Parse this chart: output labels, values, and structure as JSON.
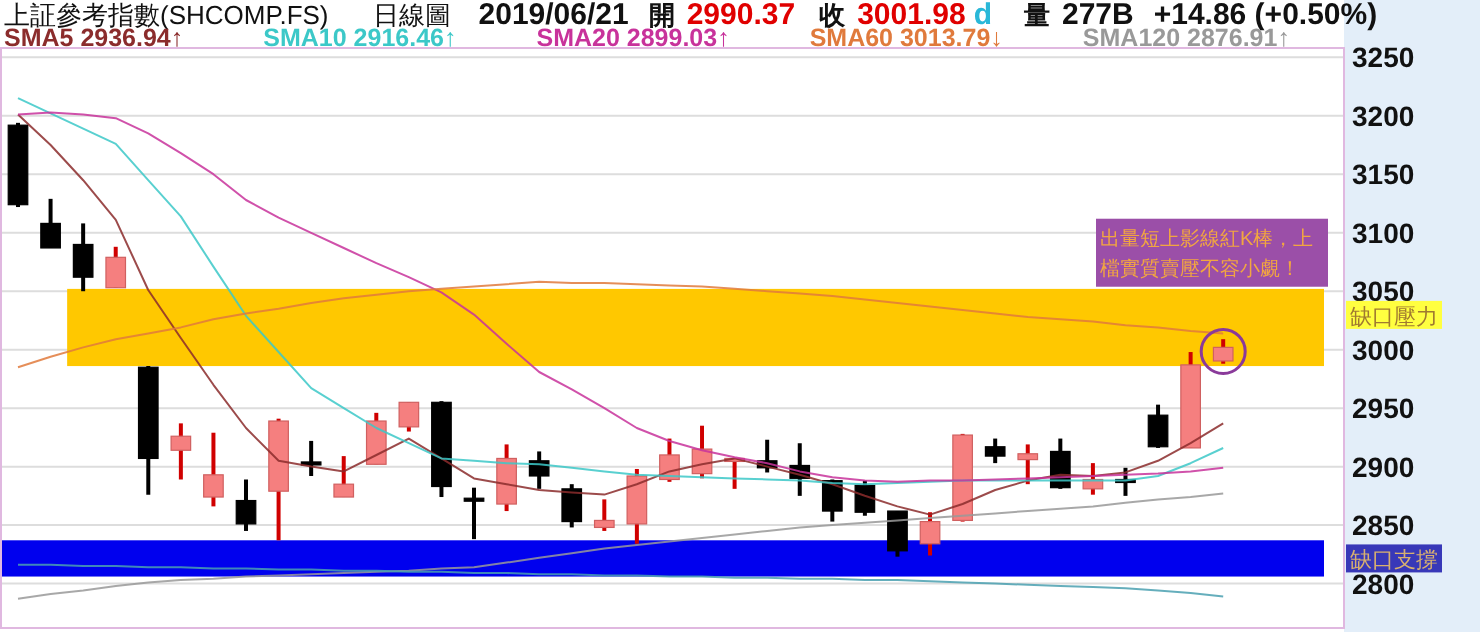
{
  "chart_data": {
    "type": "candlestick",
    "title": "上証參考指數(SHCOMP.FS)",
    "subtitle": "日線圖",
    "annotations": [
      "2019/06/21",
      "開",
      "2990.37",
      "收",
      "3001.98",
      "d",
      "量",
      "277B",
      "+14.86 (+0.50%)",
      "出量短上影線紅K棒，上檔實質賣壓不容小覷！"
    ],
    "categories": [
      null,
      null,
      null,
      null,
      null,
      null,
      null,
      null,
      null,
      null,
      null,
      null,
      null,
      null,
      null,
      null,
      null,
      null,
      null,
      null,
      null,
      null,
      null,
      null,
      null,
      null,
      null,
      null,
      null,
      null,
      null,
      null,
      null,
      null,
      null,
      null,
      null,
      null
    ],
    "ohlc": [
      [
        3192,
        3194,
        3122,
        3124
      ],
      [
        3108,
        3129,
        3087,
        3087
      ],
      [
        3090,
        3108,
        3050,
        3062
      ],
      [
        3053,
        3088,
        3053,
        3079
      ],
      [
        2985,
        2986,
        2876,
        2907
      ],
      [
        2914,
        2937,
        2889,
        2926
      ],
      [
        2874,
        2929,
        2866,
        2893
      ],
      [
        2871,
        2889,
        2845,
        2851
      ],
      [
        2879,
        2941,
        2837,
        2939
      ],
      [
        2904,
        2922,
        2892,
        2903
      ],
      [
        2874,
        2909,
        2874,
        2885
      ],
      [
        2902,
        2946,
        2902,
        2939
      ],
      [
        2934,
        2955,
        2930,
        2955
      ],
      [
        2955,
        2956,
        2874,
        2883
      ],
      [
        2873,
        2882,
        2838,
        2872
      ],
      [
        2868,
        2919,
        2862,
        2907
      ],
      [
        2905,
        2913,
        2881,
        2892
      ],
      [
        2881,
        2885,
        2848,
        2853
      ],
      [
        2848,
        2872,
        2845,
        2854
      ],
      [
        2851,
        2898,
        2834,
        2892
      ],
      [
        2889,
        2924,
        2887,
        2910
      ],
      [
        2894,
        2935,
        2890,
        2915
      ],
      [
        2905,
        2907,
        2881,
        2907
      ],
      [
        2905,
        2923,
        2895,
        2899
      ],
      [
        2901,
        2920,
        2875,
        2890
      ],
      [
        2888,
        2889,
        2853,
        2862
      ],
      [
        2884,
        2888,
        2858,
        2861
      ],
      [
        2862,
        2862,
        2823,
        2828
      ],
      [
        2834,
        2861,
        2824,
        2853
      ],
      [
        2854,
        2928,
        2853,
        2927
      ],
      [
        2917,
        2924,
        2903,
        2909
      ],
      [
        2906,
        2919,
        2885,
        2911
      ],
      [
        2913,
        2924,
        2881,
        2882
      ],
      [
        2881,
        2903,
        2876,
        2889
      ],
      [
        2889,
        2899,
        2875,
        2888
      ],
      [
        2944,
        2953,
        2916,
        2917
      ],
      [
        2916,
        2998,
        2916,
        2987
      ],
      [
        2990.37,
        3009,
        2988,
        3001.98
      ]
    ],
    "series": [
      {
        "name": "SMA5 2936.94↑",
        "type": "line",
        "color": "#8b2c2c",
        "values": [
          3201,
          3175,
          3145,
          3111,
          3051,
          3010,
          2970,
          2933,
          2905,
          2900,
          2896,
          2910,
          2924,
          2907,
          2890,
          2885,
          2880,
          2878,
          2876,
          2885,
          2896,
          2902,
          2907,
          2900,
          2893,
          2885,
          2875,
          2866,
          2859,
          2868,
          2880,
          2888,
          2893,
          2892,
          2895,
          2905,
          2920,
          2937
        ]
      },
      {
        "name": "SMA10 2916.46↑",
        "type": "line",
        "color": "#3cc8c8",
        "values": [
          3215,
          3202,
          3189,
          3176,
          3145,
          3114,
          3071,
          3029,
          2998,
          2967,
          2950,
          2933,
          2920,
          2907,
          2905,
          2903,
          2902,
          2899,
          2896,
          2893,
          2892,
          2891,
          2890,
          2889,
          2888,
          2886,
          2885,
          2886,
          2887,
          2888,
          2888,
          2888,
          2888,
          2888,
          2888,
          2892,
          2903,
          2916
        ]
      },
      {
        "name": "SMA20 2899.03↑",
        "type": "line",
        "color": "#c8329b",
        "values": [
          3201,
          3203,
          3201,
          3198,
          3185,
          3168,
          3150,
          3128,
          3113,
          3100,
          3087,
          3074,
          3062,
          3049,
          3030,
          3005,
          2981,
          2966,
          2950,
          2933,
          2922,
          2914,
          2908,
          2903,
          2896,
          2891,
          2888,
          2887,
          2888,
          2888,
          2889,
          2890,
          2891,
          2892,
          2893,
          2894,
          2896,
          2899
        ]
      },
      {
        "name": "SMA60 3013.79↓",
        "type": "line",
        "color": "#e07a3c",
        "values": [
          2985,
          2994,
          3002,
          3009,
          3014,
          3019,
          3026,
          3031,
          3035,
          3040,
          3044,
          3047,
          3050,
          3052,
          3054,
          3056,
          3058,
          3057,
          3057,
          3056,
          3055,
          3054,
          3052,
          3050,
          3048,
          3046,
          3043,
          3040,
          3037,
          3034,
          3031,
          3028,
          3026,
          3024,
          3021,
          3019,
          3016,
          3014
        ]
      },
      {
        "name": "SMA120 2876.91↑",
        "type": "line",
        "color": "#999999",
        "values": [
          2787,
          2791,
          2794,
          2798,
          2801,
          2803,
          2804,
          2806,
          2807,
          2808,
          2809,
          2810,
          2811,
          2813,
          2814,
          2818,
          2822,
          2826,
          2830,
          2833,
          2836,
          2839,
          2842,
          2845,
          2848,
          2850,
          2852,
          2854,
          2856,
          2858,
          2860,
          2862,
          2864,
          2866,
          2869,
          2872,
          2874,
          2877
        ]
      },
      {
        "type": "line",
        "color": "#4aa0b0",
        "values": [
          2816,
          2816,
          2815,
          2815,
          2814,
          2814,
          2813,
          2813,
          2812,
          2812,
          2811,
          2811,
          2810,
          2810,
          2809,
          2809,
          2808,
          2808,
          2807,
          2807,
          2806,
          2806,
          2805,
          2805,
          2804,
          2804,
          2803,
          2803,
          2802,
          2801,
          2800,
          2799,
          2798,
          2797,
          2796,
          2794,
          2792,
          2789
        ]
      }
    ],
    "bands": [
      {
        "axis": "y",
        "from": 2986,
        "to": 3052,
        "label": "缺口壓力",
        "color": "#ffc800"
      },
      {
        "axis": "y",
        "from": 2806,
        "to": 2837,
        "label": "缺口支撐",
        "color": "#0000ee"
      }
    ],
    "ylim": [
      2762,
      3258
    ],
    "yticks": [
      2800,
      2850,
      2900,
      2950,
      3000,
      3050,
      3100,
      3150,
      3200,
      3250
    ],
    "grid": "y",
    "legend": "top"
  }
}
